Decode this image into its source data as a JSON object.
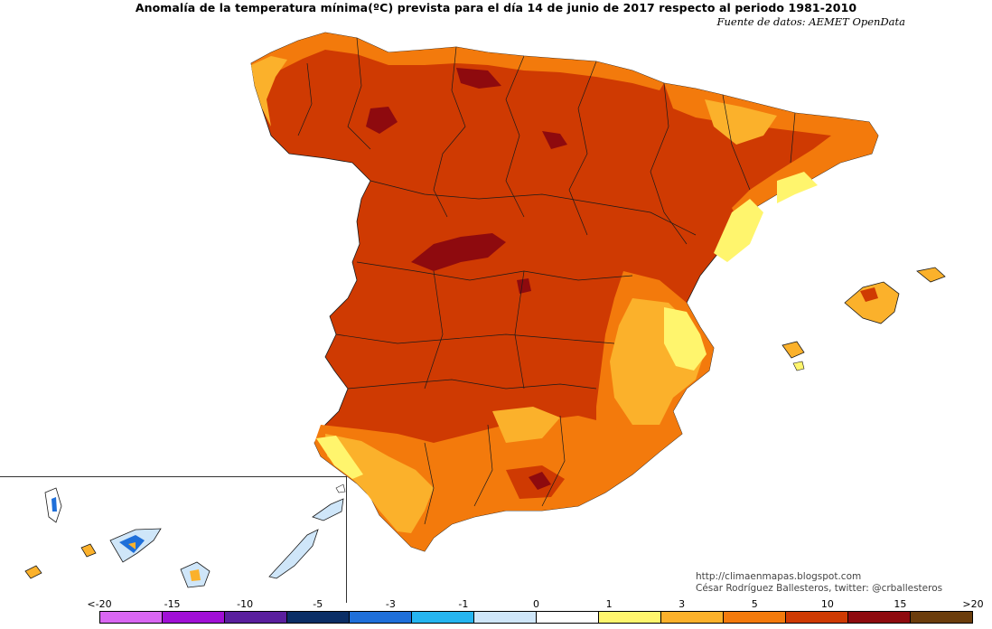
{
  "title": "Anomalía de la temperatura mínima(ºC) prevista para el día 14 de junio de 2017 respecto al periodo 1981-2010",
  "source": "Fuente de datos: AEMET OpenData",
  "credits": {
    "blog": "http://climaenmapas.blogspot.com",
    "author": "César Rodríguez Ballesteros, twitter: @crballesteros"
  },
  "legend": {
    "ticks": [
      "<-20",
      "-15",
      "-10",
      "-5",
      "-3",
      "-1",
      "0",
      "1",
      "3",
      "5",
      "10",
      "15",
      ">20"
    ],
    "colors": [
      "#d966f2",
      "#a10fd6",
      "#5a1f9e",
      "#0b2e66",
      "#1f6fd9",
      "#26b5f0",
      "#cfe6f9",
      "#ffffff",
      "#fff56d",
      "#fbb12b",
      "#f37a0c",
      "#cf3a02",
      "#8e0a0e",
      "#6b3d0c"
    ]
  },
  "colors": {
    "dominant": "#cf3a02",
    "warm": "#f37a0c",
    "mild": "#fbb12b",
    "weak": "#fff56d",
    "extreme": "#8e0a0e",
    "cool": "#cfe6f9",
    "cold": "#1f6fd9"
  }
}
